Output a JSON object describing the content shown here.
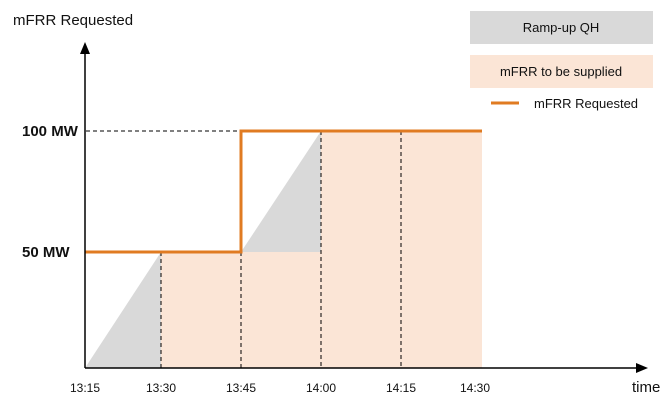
{
  "y_axis_label": "mFRR Requested",
  "x_axis_label": "time",
  "colors": {
    "ramp_fill": "#d9d9d9",
    "supply_fill": "#fbe5d6",
    "requested_line": "#e07b22",
    "axis": "#000000"
  },
  "legend": [
    {
      "label": "Ramp-up QH",
      "kind": "box",
      "color": "#d9d9d9"
    },
    {
      "label": "mFRR to be supplied",
      "kind": "box",
      "color": "#fbe5d6"
    },
    {
      "label": "mFRR Requested",
      "kind": "line",
      "color": "#e07b22"
    }
  ],
  "y_levels": [
    {
      "label": "100 MW",
      "value": 100
    },
    {
      "label": "50 MW",
      "value": 50
    }
  ],
  "x_ticks": [
    "13:15",
    "13:30",
    "13:45",
    "14:00",
    "14:15",
    "14:30"
  ],
  "chart_data": {
    "type": "step",
    "x": [
      "13:15",
      "13:30",
      "13:45",
      "14:00",
      "14:15",
      "14:30"
    ],
    "series": [
      {
        "name": "mFRR Requested",
        "values": [
          50,
          50,
          100,
          100,
          100,
          100
        ]
      }
    ]
  }
}
